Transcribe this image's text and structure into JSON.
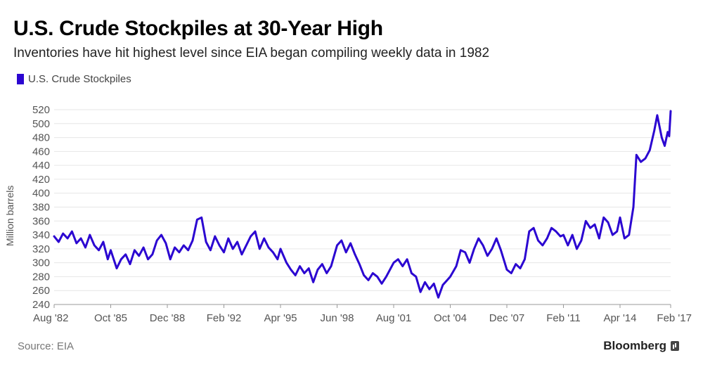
{
  "chart_data": {
    "type": "line",
    "title": "U.S. Crude Stockpiles at 30-Year High",
    "subtitle": "Inventories have hit highest level since EIA began compiling weekly data in 1982",
    "ylabel": "Million barrels",
    "xlabel": "",
    "ylim": [
      240,
      520
    ],
    "yticks": [
      240,
      260,
      280,
      300,
      320,
      340,
      360,
      380,
      400,
      420,
      440,
      460,
      480,
      500,
      520
    ],
    "x_range": [
      "1982-08",
      "2017-02"
    ],
    "xtick_labels": [
      "Aug '82",
      "Oct '85",
      "Dec '88",
      "Feb '92",
      "Apr '95",
      "Jun '98",
      "Aug '01",
      "Oct '04",
      "Dec '07",
      "Feb '11",
      "Apr '14",
      "Feb '17"
    ],
    "xtick_dates": [
      "1982-08",
      "1985-10",
      "1988-12",
      "1992-02",
      "1995-04",
      "1998-06",
      "2001-08",
      "2004-10",
      "2007-12",
      "2011-02",
      "2014-04",
      "2017-02"
    ],
    "grid": true,
    "legend_position": "top-left",
    "series": [
      {
        "name": "U.S. Crude Stockpiles",
        "color": "#2b06d1",
        "points": [
          [
            "1982-08",
            338
          ],
          [
            "1982-11",
            330
          ],
          [
            "1983-02",
            342
          ],
          [
            "1983-05",
            335
          ],
          [
            "1983-08",
            345
          ],
          [
            "1983-11",
            328
          ],
          [
            "1984-02",
            335
          ],
          [
            "1984-05",
            322
          ],
          [
            "1984-08",
            340
          ],
          [
            "1984-11",
            325
          ],
          [
            "1985-02",
            318
          ],
          [
            "1985-05",
            330
          ],
          [
            "1985-08",
            305
          ],
          [
            "1985-10",
            318
          ],
          [
            "1986-02",
            292
          ],
          [
            "1986-05",
            305
          ],
          [
            "1986-08",
            312
          ],
          [
            "1986-11",
            298
          ],
          [
            "1987-02",
            318
          ],
          [
            "1987-05",
            310
          ],
          [
            "1987-08",
            322
          ],
          [
            "1987-11",
            305
          ],
          [
            "1988-02",
            312
          ],
          [
            "1988-05",
            332
          ],
          [
            "1988-08",
            340
          ],
          [
            "1988-11",
            328
          ],
          [
            "1989-02",
            305
          ],
          [
            "1989-05",
            322
          ],
          [
            "1989-08",
            315
          ],
          [
            "1989-11",
            325
          ],
          [
            "1990-02",
            318
          ],
          [
            "1990-05",
            332
          ],
          [
            "1990-08",
            362
          ],
          [
            "1990-11",
            365
          ],
          [
            "1991-02",
            330
          ],
          [
            "1991-05",
            318
          ],
          [
            "1991-08",
            338
          ],
          [
            "1991-11",
            325
          ],
          [
            "1992-02",
            315
          ],
          [
            "1992-05",
            335
          ],
          [
            "1992-08",
            320
          ],
          [
            "1992-11",
            330
          ],
          [
            "1993-02",
            312
          ],
          [
            "1993-05",
            325
          ],
          [
            "1993-08",
            338
          ],
          [
            "1993-11",
            345
          ],
          [
            "1994-02",
            320
          ],
          [
            "1994-05",
            335
          ],
          [
            "1994-08",
            322
          ],
          [
            "1994-11",
            315
          ],
          [
            "1995-02",
            305
          ],
          [
            "1995-04",
            320
          ],
          [
            "1995-08",
            300
          ],
          [
            "1995-11",
            290
          ],
          [
            "1996-02",
            282
          ],
          [
            "1996-05",
            295
          ],
          [
            "1996-08",
            285
          ],
          [
            "1996-11",
            292
          ],
          [
            "1997-02",
            272
          ],
          [
            "1997-05",
            290
          ],
          [
            "1997-08",
            298
          ],
          [
            "1997-11",
            285
          ],
          [
            "1998-02",
            295
          ],
          [
            "1998-06",
            325
          ],
          [
            "1998-09",
            332
          ],
          [
            "1998-12",
            315
          ],
          [
            "1999-03",
            328
          ],
          [
            "1999-06",
            312
          ],
          [
            "1999-09",
            298
          ],
          [
            "1999-12",
            282
          ],
          [
            "2000-03",
            275
          ],
          [
            "2000-06",
            285
          ],
          [
            "2000-09",
            280
          ],
          [
            "2000-12",
            270
          ],
          [
            "2001-03",
            280
          ],
          [
            "2001-08",
            300
          ],
          [
            "2001-11",
            305
          ],
          [
            "2002-02",
            295
          ],
          [
            "2002-05",
            305
          ],
          [
            "2002-08",
            285
          ],
          [
            "2002-11",
            280
          ],
          [
            "2003-02",
            258
          ],
          [
            "2003-05",
            272
          ],
          [
            "2003-08",
            262
          ],
          [
            "2003-11",
            270
          ],
          [
            "2004-02",
            250
          ],
          [
            "2004-05",
            268
          ],
          [
            "2004-10",
            280
          ],
          [
            "2005-02",
            295
          ],
          [
            "2005-05",
            318
          ],
          [
            "2005-08",
            315
          ],
          [
            "2005-11",
            300
          ],
          [
            "2006-02",
            320
          ],
          [
            "2006-05",
            335
          ],
          [
            "2006-08",
            325
          ],
          [
            "2006-11",
            310
          ],
          [
            "2007-02",
            320
          ],
          [
            "2007-05",
            335
          ],
          [
            "2007-08",
            318
          ],
          [
            "2007-12",
            290
          ],
          [
            "2008-03",
            285
          ],
          [
            "2008-06",
            298
          ],
          [
            "2008-09",
            292
          ],
          [
            "2008-12",
            305
          ],
          [
            "2009-03",
            345
          ],
          [
            "2009-06",
            350
          ],
          [
            "2009-09",
            332
          ],
          [
            "2009-12",
            325
          ],
          [
            "2010-03",
            335
          ],
          [
            "2010-06",
            350
          ],
          [
            "2010-09",
            345
          ],
          [
            "2010-12",
            338
          ],
          [
            "2011-02",
            340
          ],
          [
            "2011-05",
            325
          ],
          [
            "2011-08",
            340
          ],
          [
            "2011-11",
            320
          ],
          [
            "2012-02",
            332
          ],
          [
            "2012-05",
            360
          ],
          [
            "2012-08",
            350
          ],
          [
            "2012-11",
            355
          ],
          [
            "2013-02",
            335
          ],
          [
            "2013-05",
            365
          ],
          [
            "2013-08",
            358
          ],
          [
            "2013-11",
            340
          ],
          [
            "2014-02",
            345
          ],
          [
            "2014-04",
            365
          ],
          [
            "2014-07",
            335
          ],
          [
            "2014-10",
            340
          ],
          [
            "2015-01",
            380
          ],
          [
            "2015-03",
            455
          ],
          [
            "2015-06",
            445
          ],
          [
            "2015-09",
            450
          ],
          [
            "2015-12",
            462
          ],
          [
            "2016-03",
            490
          ],
          [
            "2016-05",
            512
          ],
          [
            "2016-08",
            480
          ],
          [
            "2016-10",
            468
          ],
          [
            "2016-12",
            488
          ],
          [
            "2017-01",
            482
          ],
          [
            "2017-02",
            518
          ]
        ]
      }
    ]
  },
  "footer": {
    "source": "Source: EIA",
    "brand": "Bloomberg"
  }
}
